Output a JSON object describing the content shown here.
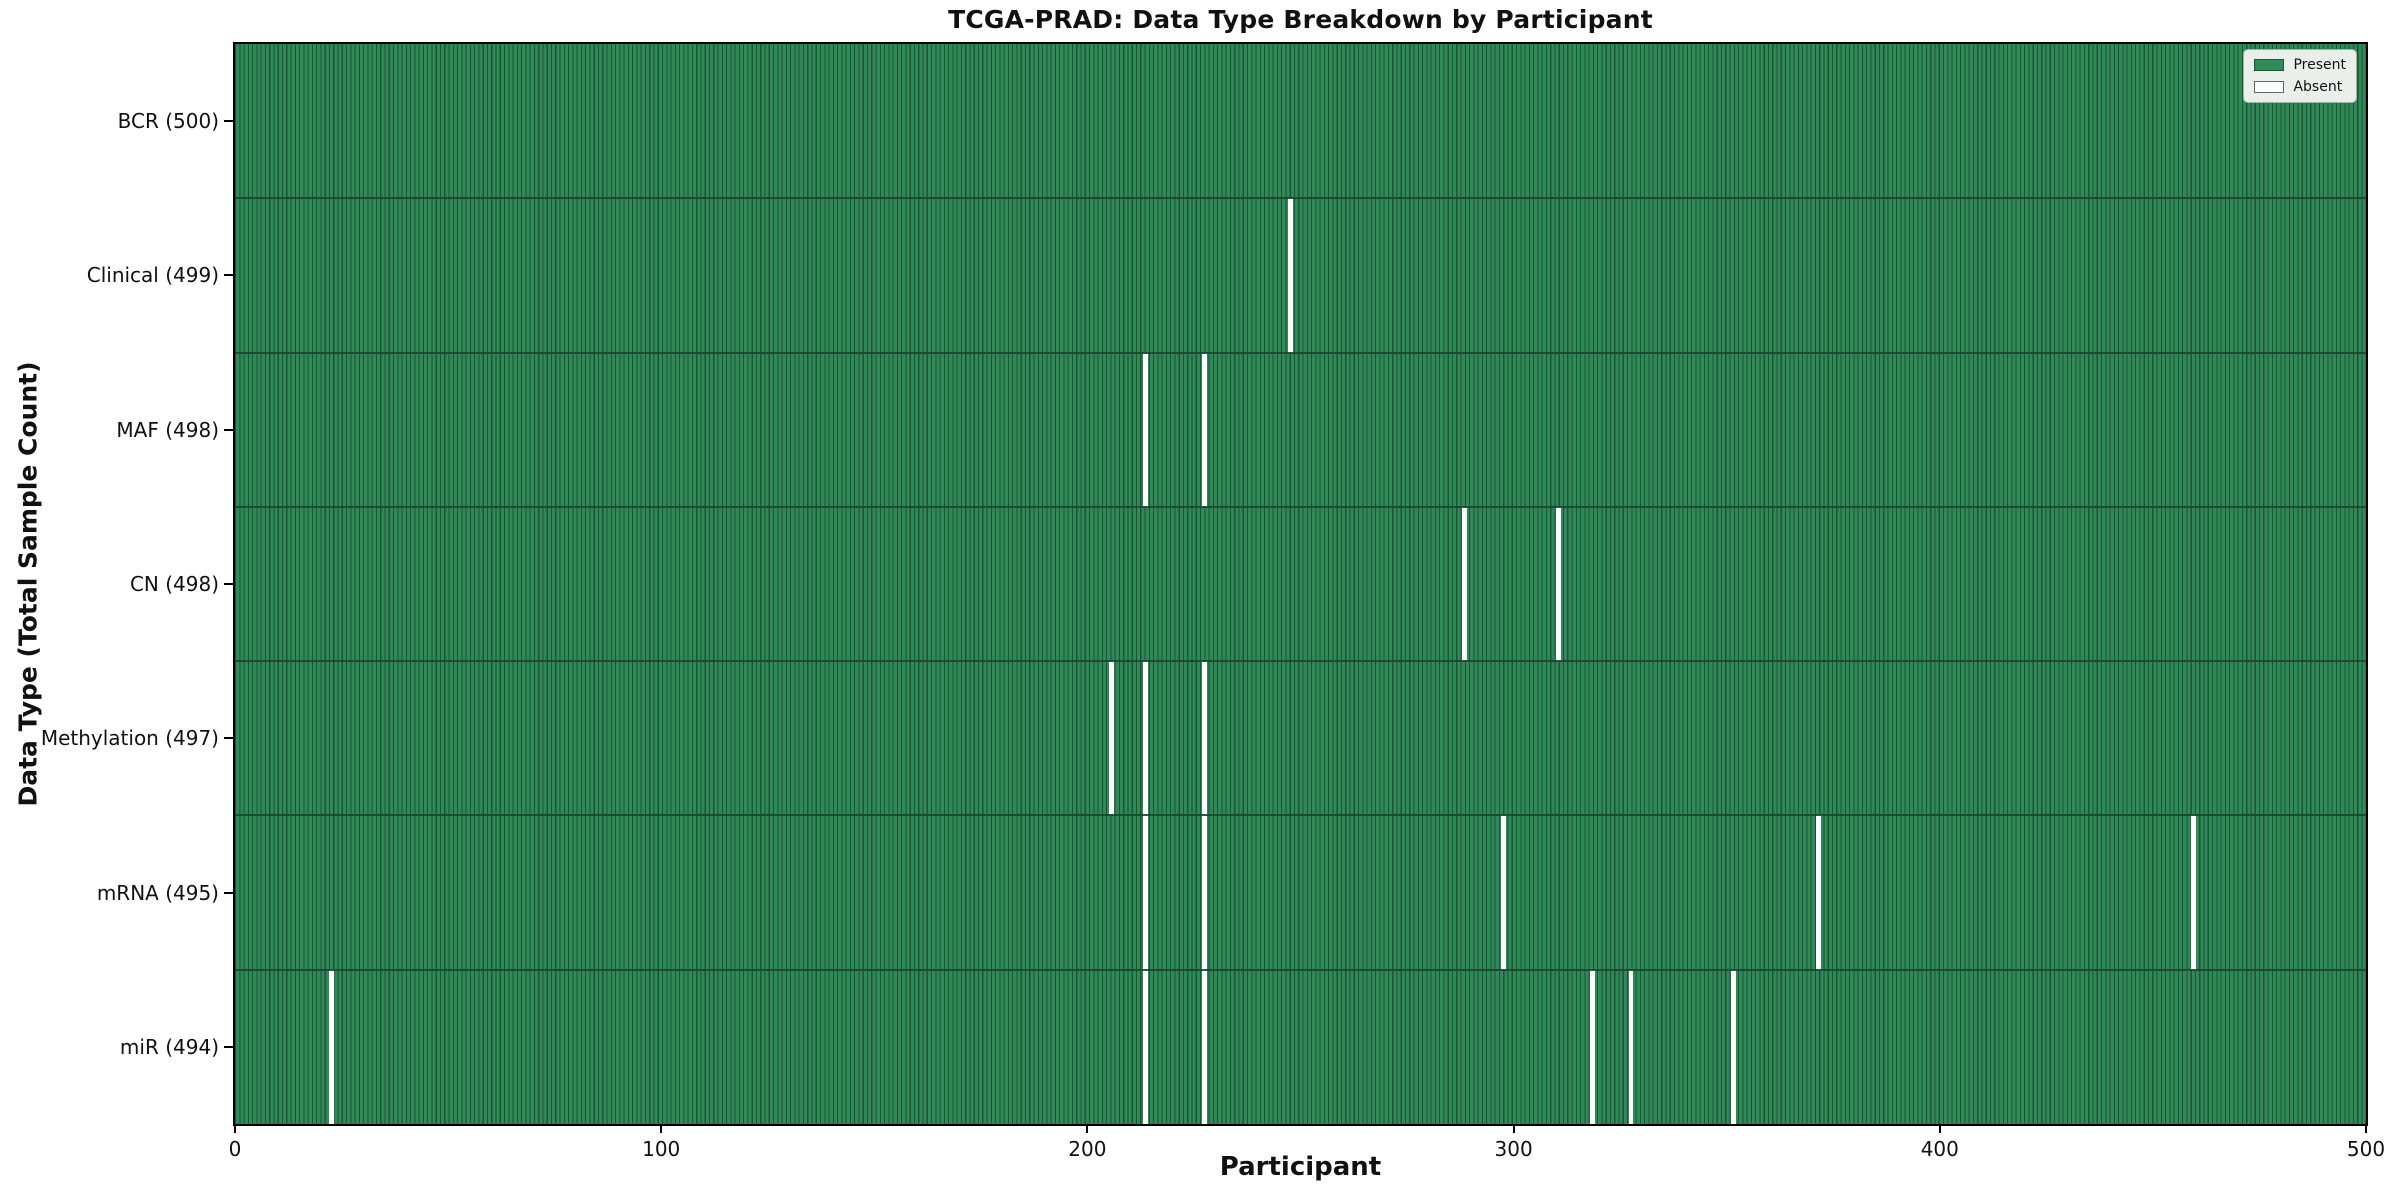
{
  "chart_data": {
    "type": "heatmap",
    "title": "TCGA-PRAD: Data Type Breakdown by Participant",
    "xlabel": "Participant",
    "ylabel": "Data Type (Total Sample Count)",
    "x_min": 0,
    "x_max": 500,
    "x_ticks": [
      0,
      100,
      200,
      300,
      400,
      500
    ],
    "n_participants": 500,
    "grid": false,
    "legend": {
      "position": "upper-right",
      "entries": [
        {
          "label": "Present",
          "color": "#2e8b57"
        },
        {
          "label": "Absent",
          "color": "#ffffff"
        }
      ]
    },
    "rows": [
      {
        "label": "BCR (500)",
        "data_type": "BCR",
        "total": 500,
        "absent_participants": []
      },
      {
        "label": "Clinical (499)",
        "data_type": "Clinical",
        "total": 499,
        "absent_participants": [
          247
        ]
      },
      {
        "label": "MAF (498)",
        "data_type": "MAF",
        "total": 498,
        "absent_participants": [
          213,
          227
        ]
      },
      {
        "label": "CN (498)",
        "data_type": "CN",
        "total": 498,
        "absent_participants": [
          288,
          310
        ]
      },
      {
        "label": "Methylation (497)",
        "data_type": "Methylation",
        "total": 497,
        "absent_participants": [
          205,
          213,
          227
        ]
      },
      {
        "label": "mRNA (495)",
        "data_type": "mRNA",
        "total": 495,
        "absent_participants": [
          213,
          227,
          297,
          371,
          459
        ]
      },
      {
        "label": "miR (494)",
        "data_type": "miR",
        "total": 494,
        "absent_participants": [
          22,
          213,
          227,
          318,
          327,
          351
        ]
      }
    ],
    "colors": {
      "present": "#2e8b57",
      "absent": "#ffffff",
      "bar_edge": "#205238",
      "row_separator": "#1d4430",
      "axis": "#000000",
      "legend_bg": "#e9f0e9",
      "legend_border": "#a3b3a3",
      "swatch_edge": "#666666"
    }
  }
}
